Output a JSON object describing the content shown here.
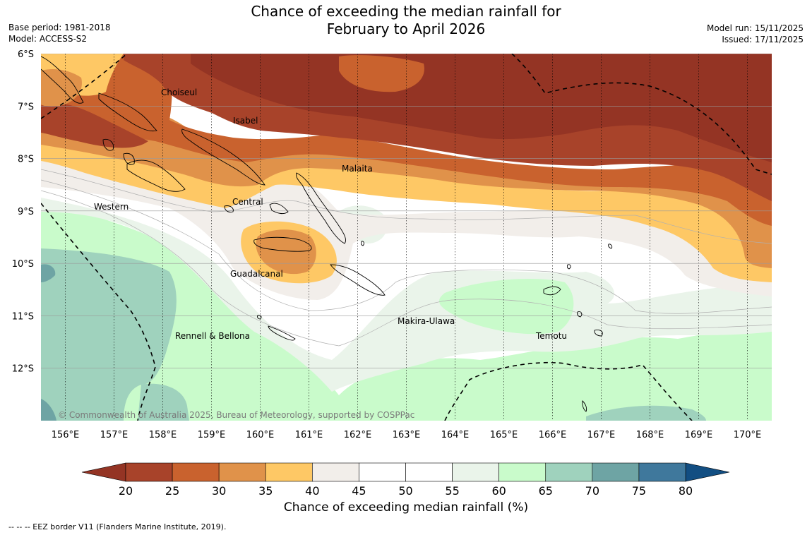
{
  "title_line1": "Chance of exceeding the median rainfall for",
  "title_line2": "February to April 2026",
  "meta_left": {
    "base_period": "Base period: 1981-2018",
    "model": "Model: ACCESS-S2"
  },
  "meta_right": {
    "model_run": "Model run: 15/11/2025",
    "issued": "Issued: 17/11/2025"
  },
  "map": {
    "lat_range": [
      -6,
      -13
    ],
    "lon_range": [
      155.5,
      170.5
    ],
    "lat_labels": [
      "6°S",
      "7°S",
      "8°S",
      "9°S",
      "10°S",
      "11°S",
      "12°S"
    ],
    "lon_labels": [
      "156°E",
      "157°E",
      "158°E",
      "159°E",
      "160°E",
      "161°E",
      "162°E",
      "163°E",
      "164°E",
      "165°E",
      "166°E",
      "167°E",
      "168°E",
      "169°E",
      "170°E"
    ],
    "place_labels": [
      "Choiseul",
      "Isabel",
      "Malaita",
      "Central",
      "Western",
      "Guadalcanal",
      "Makira-Ulawa",
      "Temotu",
      "Rennell & Bellona"
    ],
    "copyright": "© Commonwealth of Australia 2025, Bureau of Meteorology, supported by COSPPac"
  },
  "colorbar": {
    "ticks": [
      "20",
      "25",
      "30",
      "35",
      "40",
      "45",
      "50",
      "55",
      "60",
      "65",
      "70",
      "75",
      "80"
    ],
    "colors": [
      "#a8432a",
      "#c9622e",
      "#e0924a",
      "#fec865",
      "#f2eeea",
      "#ffffff",
      "#ffffff",
      "#eaf4ea",
      "#c9fbcb",
      "#9fd2bd",
      "#6ea4a4",
      "#3f789c"
    ],
    "under_color": "#943424",
    "over_color": "#124e82",
    "label": "Chance of exceeding median rainfall (%)"
  },
  "footer": "--  --  -- EEZ border V11 (Flanders Marine Institute, 2019)."
}
